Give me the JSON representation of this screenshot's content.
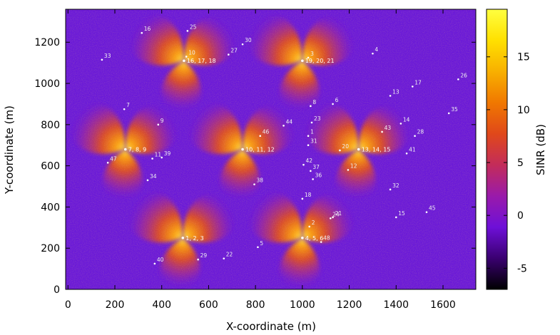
{
  "chart_data": {
    "type": "heatmap",
    "xlabel": "X-coordinate (m)",
    "ylabel": "Y-coordinate (m)",
    "colorbar_label": "SINR (dB)",
    "xlim": [
      -10,
      1740
    ],
    "ylim": [
      0,
      1360
    ],
    "zlim": [
      -7,
      19.5
    ],
    "x_ticks": [
      0,
      200,
      400,
      600,
      800,
      1000,
      1200,
      1400,
      1600
    ],
    "y_ticks": [
      0,
      200,
      400,
      600,
      800,
      1000,
      1200
    ],
    "z_ticks": [
      -5,
      0,
      5,
      10,
      15
    ],
    "colormap": [
      "#000000",
      "#3a0070",
      "#6e10d8",
      "#9a1aaa",
      "#c32c5a",
      "#e0481a",
      "#f07800",
      "#f8b000",
      "#ffe000",
      "#ffff40"
    ],
    "background_color": "#6a19d8",
    "sites": [
      {
        "label": "1, 2, 3",
        "x": 490,
        "y": 250
      },
      {
        "label": "4, 5, 6",
        "x": 1000,
        "y": 250
      },
      {
        "label": "7, 8, 9",
        "x": 245,
        "y": 680
      },
      {
        "label": "10, 11, 12",
        "x": 745,
        "y": 680
      },
      {
        "label": "13, 14, 15",
        "x": 1240,
        "y": 680
      },
      {
        "label": "16, 17, 18",
        "x": 495,
        "y": 1110
      },
      {
        "label": "19, 20, 21",
        "x": 1000,
        "y": 1110
      }
    ],
    "user_points": [
      {
        "label": "1",
        "x": 1025,
        "y": 745
      },
      {
        "label": "2",
        "x": 1030,
        "y": 305
      },
      {
        "label": "3",
        "x": 1025,
        "y": 1125
      },
      {
        "label": "4",
        "x": 1300,
        "y": 1145
      },
      {
        "label": "5",
        "x": 810,
        "y": 205
      },
      {
        "label": "6",
        "x": 1130,
        "y": 900
      },
      {
        "label": "7",
        "x": 240,
        "y": 875
      },
      {
        "label": "8",
        "x": 1035,
        "y": 890
      },
      {
        "label": "9",
        "x": 385,
        "y": 800
      },
      {
        "label": "10",
        "x": 505,
        "y": 1130
      },
      {
        "label": "11",
        "x": 360,
        "y": 635
      },
      {
        "label": "12",
        "x": 1195,
        "y": 580
      },
      {
        "label": "13",
        "x": 1375,
        "y": 940
      },
      {
        "label": "14",
        "x": 1420,
        "y": 805
      },
      {
        "label": "15",
        "x": 1400,
        "y": 350
      },
      {
        "label": "16",
        "x": 315,
        "y": 1245
      },
      {
        "label": "17",
        "x": 1470,
        "y": 985
      },
      {
        "label": "18",
        "x": 1000,
        "y": 440
      },
      {
        "label": "20",
        "x": 1160,
        "y": 675
      },
      {
        "label": "21",
        "x": 1130,
        "y": 350
      },
      {
        "label": "22",
        "x": 665,
        "y": 150
      },
      {
        "label": "23",
        "x": 1040,
        "y": 810
      },
      {
        "label": "24",
        "x": 1120,
        "y": 345
      },
      {
        "label": "25",
        "x": 510,
        "y": 1255
      },
      {
        "label": "26",
        "x": 1665,
        "y": 1020
      },
      {
        "label": "27",
        "x": 685,
        "y": 1140
      },
      {
        "label": "28",
        "x": 1480,
        "y": 745
      },
      {
        "label": "29",
        "x": 555,
        "y": 145
      },
      {
        "label": "30",
        "x": 745,
        "y": 1190
      },
      {
        "label": "31",
        "x": 1025,
        "y": 700
      },
      {
        "label": "32",
        "x": 1375,
        "y": 485
      },
      {
        "label": "33",
        "x": 145,
        "y": 1115
      },
      {
        "label": "34",
        "x": 340,
        "y": 530
      },
      {
        "label": "35",
        "x": 1625,
        "y": 855
      },
      {
        "label": "36",
        "x": 1045,
        "y": 535
      },
      {
        "label": "37",
        "x": 1035,
        "y": 575
      },
      {
        "label": "38",
        "x": 795,
        "y": 510
      },
      {
        "label": "39",
        "x": 400,
        "y": 640
      },
      {
        "label": "40",
        "x": 370,
        "y": 125
      },
      {
        "label": "41",
        "x": 1445,
        "y": 660
      },
      {
        "label": "42",
        "x": 1005,
        "y": 605
      },
      {
        "label": "43",
        "x": 1340,
        "y": 765
      },
      {
        "label": "44",
        "x": 920,
        "y": 795
      },
      {
        "label": "45",
        "x": 1530,
        "y": 375
      },
      {
        "label": "46",
        "x": 820,
        "y": 745
      },
      {
        "label": "47",
        "x": 170,
        "y": 615
      },
      {
        "label": "48",
        "x": 1080,
        "y": 230
      }
    ]
  }
}
